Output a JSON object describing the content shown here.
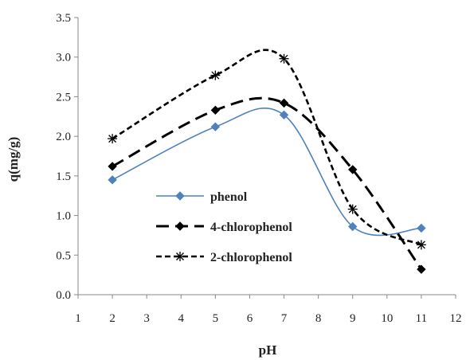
{
  "chart_data": {
    "type": "line",
    "title": "",
    "xlabel": "pH",
    "ylabel": "q(mg/g)",
    "xlim": [
      1,
      12
    ],
    "ylim": [
      0,
      3.5
    ],
    "x_ticks": [
      "1",
      "2",
      "3",
      "4",
      "5",
      "6",
      "7",
      "8",
      "9",
      "10",
      "11",
      "12"
    ],
    "y_ticks": [
      "0.0",
      "0.5",
      "1.0",
      "1.5",
      "2.0",
      "2.5",
      "3.0",
      "3.5"
    ],
    "grid": false,
    "legend_position": "center-left",
    "series": [
      {
        "name": "phenol",
        "x": [
          2,
          5,
          7,
          9,
          11
        ],
        "y": [
          1.45,
          2.12,
          2.27,
          0.86,
          0.84
        ],
        "color": "#4f81bd",
        "line_style": "solid",
        "marker": "diamond"
      },
      {
        "name": "4-chlorophenol",
        "x": [
          2,
          5,
          7,
          9,
          11
        ],
        "y": [
          1.62,
          2.33,
          2.42,
          1.58,
          0.32
        ],
        "color": "#000000",
        "line_style": "long-dash",
        "marker": "diamond"
      },
      {
        "name": "2-chlorophenol",
        "x": [
          2,
          5,
          7,
          9,
          11
        ],
        "y": [
          1.97,
          2.77,
          2.98,
          1.08,
          0.63
        ],
        "color": "#000000",
        "line_style": "short-dash",
        "marker": "asterisk"
      }
    ]
  }
}
